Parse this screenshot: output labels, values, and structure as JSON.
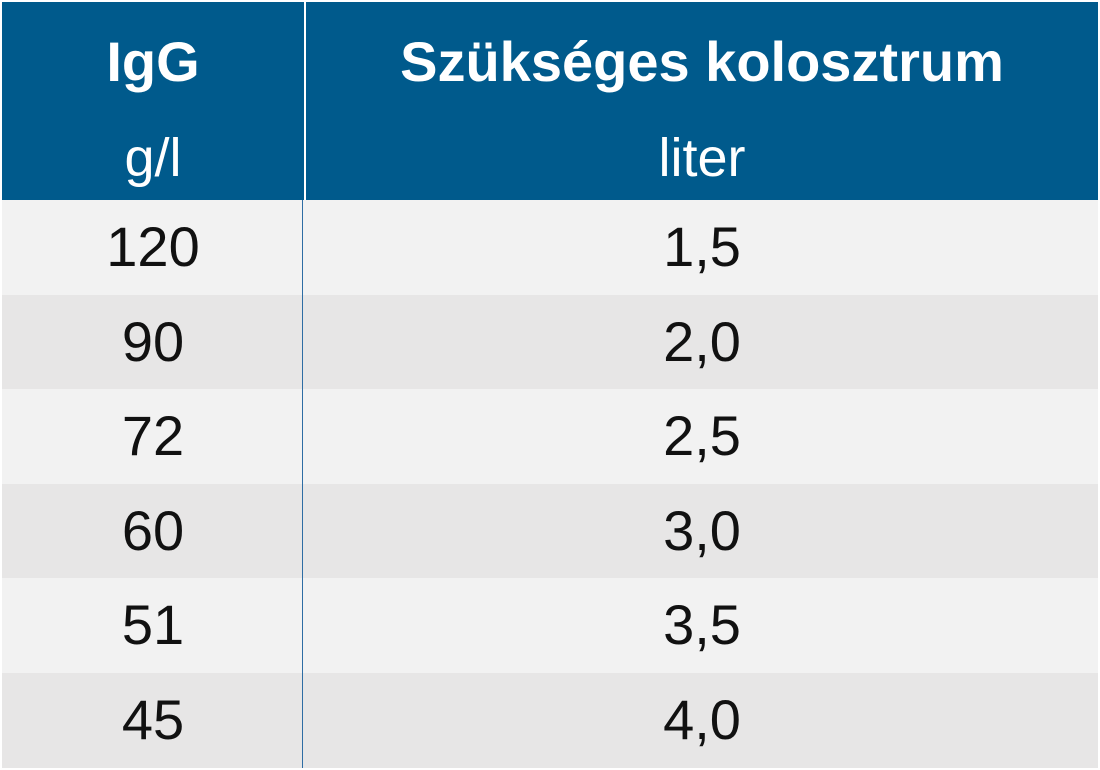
{
  "table": {
    "header": {
      "col1": {
        "title": "IgG",
        "unit": "g/l"
      },
      "col2": {
        "title": "Szükséges kolosztrum",
        "unit": "liter"
      }
    },
    "rows": [
      {
        "igg": "120",
        "liter": "1,5"
      },
      {
        "igg": "90",
        "liter": "2,0"
      },
      {
        "igg": "72",
        "liter": "2,5"
      },
      {
        "igg": "60",
        "liter": "3,0"
      },
      {
        "igg": "51",
        "liter": "3,5"
      },
      {
        "igg": "45",
        "liter": "4,0"
      }
    ],
    "colors": {
      "header_bg": "#005a8c",
      "header_text": "#ffffff",
      "row_light": "#f2f2f2",
      "row_dark": "#e7e6e6",
      "divider": "#2e6da4"
    }
  }
}
